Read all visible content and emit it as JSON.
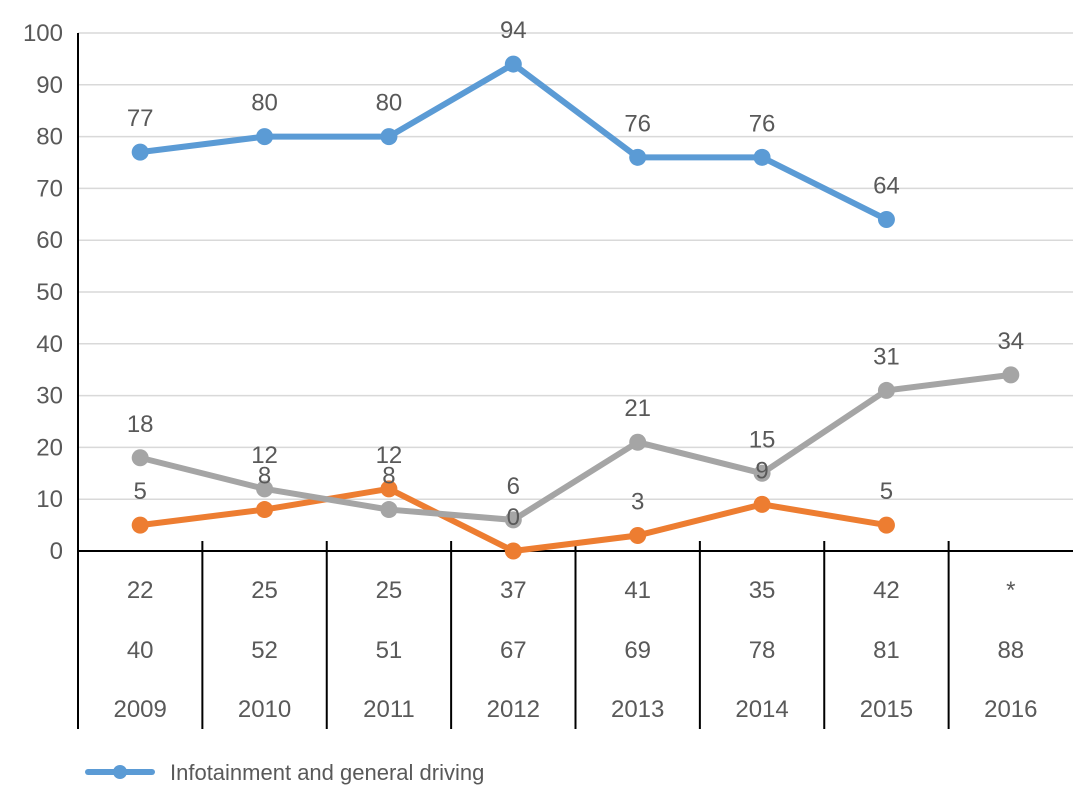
{
  "chart_data": {
    "type": "line",
    "x": [
      "2009",
      "2010",
      "2011",
      "2012",
      "2013",
      "2014",
      "2015",
      "2016"
    ],
    "ylim": [
      0,
      100
    ],
    "yticks": [
      0,
      10,
      20,
      30,
      40,
      50,
      60,
      70,
      80,
      90,
      100
    ],
    "grid": true,
    "series": [
      {
        "name": "Infotainment and general driving",
        "color": "#5B9BD5",
        "values": [
          77,
          80,
          80,
          94,
          76,
          76,
          64,
          null
        ]
      },
      {
        "color": "#ED7D31",
        "values": [
          5,
          8,
          12,
          0,
          3,
          9,
          5,
          null
        ]
      },
      {
        "color": "#A5A5A5",
        "values": [
          18,
          12,
          8,
          6,
          21,
          15,
          31,
          34
        ]
      }
    ],
    "table_rows": [
      [
        "22",
        "25",
        "25",
        "37",
        "41",
        "35",
        "42",
        "*"
      ],
      [
        "40",
        "52",
        "51",
        "67",
        "69",
        "78",
        "81",
        "88"
      ]
    ],
    "legend_position": "bottom-left"
  }
}
